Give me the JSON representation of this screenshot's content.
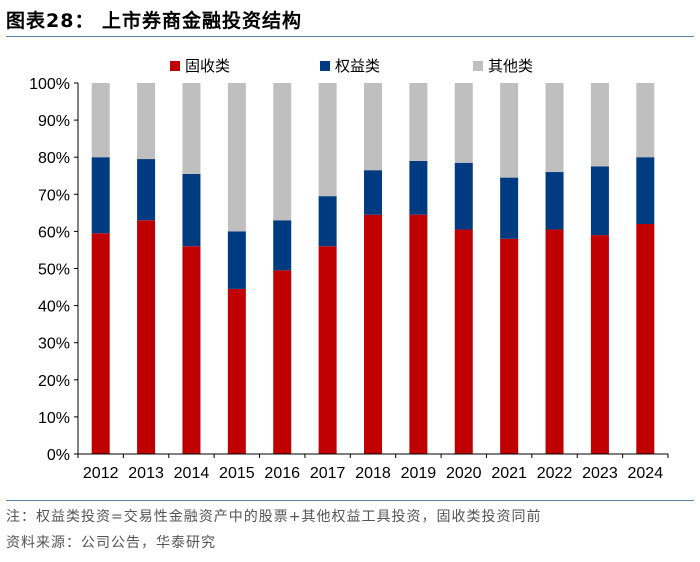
{
  "figure": {
    "title": "图表28：  上市券商金融投资结构",
    "note": "注：权益类投资=交易性金融资产中的股票+其他权益工具投资，固收类投资同前",
    "source": "资料来源：公司公告，华泰研究"
  },
  "colors": {
    "fixed_income": "#C00000",
    "equity": "#003A80",
    "other": "#BFBFBF",
    "axis": "#000000"
  },
  "chart_data": {
    "type": "bar",
    "stacked": true,
    "categories": [
      "2012",
      "2013",
      "2014",
      "2015",
      "2016",
      "2017",
      "2018",
      "2019",
      "2020",
      "2021",
      "2022",
      "2023",
      "2024"
    ],
    "series": [
      {
        "name": "固收类",
        "values": [
          59.5,
          63,
          56,
          44.5,
          49.5,
          56,
          64.5,
          64.5,
          60.5,
          58,
          60.5,
          59,
          62
        ]
      },
      {
        "name": "权益类",
        "values": [
          20.5,
          16.5,
          19.5,
          15.5,
          13.5,
          13.5,
          12,
          14.5,
          18,
          16.5,
          15.5,
          18.5,
          18
        ]
      },
      {
        "name": "其他类",
        "values": [
          20,
          20.5,
          24.5,
          40,
          37,
          30.5,
          23.5,
          21,
          21.5,
          25.5,
          24,
          22.5,
          20
        ]
      }
    ],
    "yticks": [
      "0%",
      "10%",
      "20%",
      "30%",
      "40%",
      "50%",
      "60%",
      "70%",
      "80%",
      "90%",
      "100%"
    ],
    "ylim": [
      0,
      100
    ],
    "title": "上市券商金融投资结构",
    "xlabel": "",
    "ylabel": "",
    "legend_position": "top-center"
  }
}
